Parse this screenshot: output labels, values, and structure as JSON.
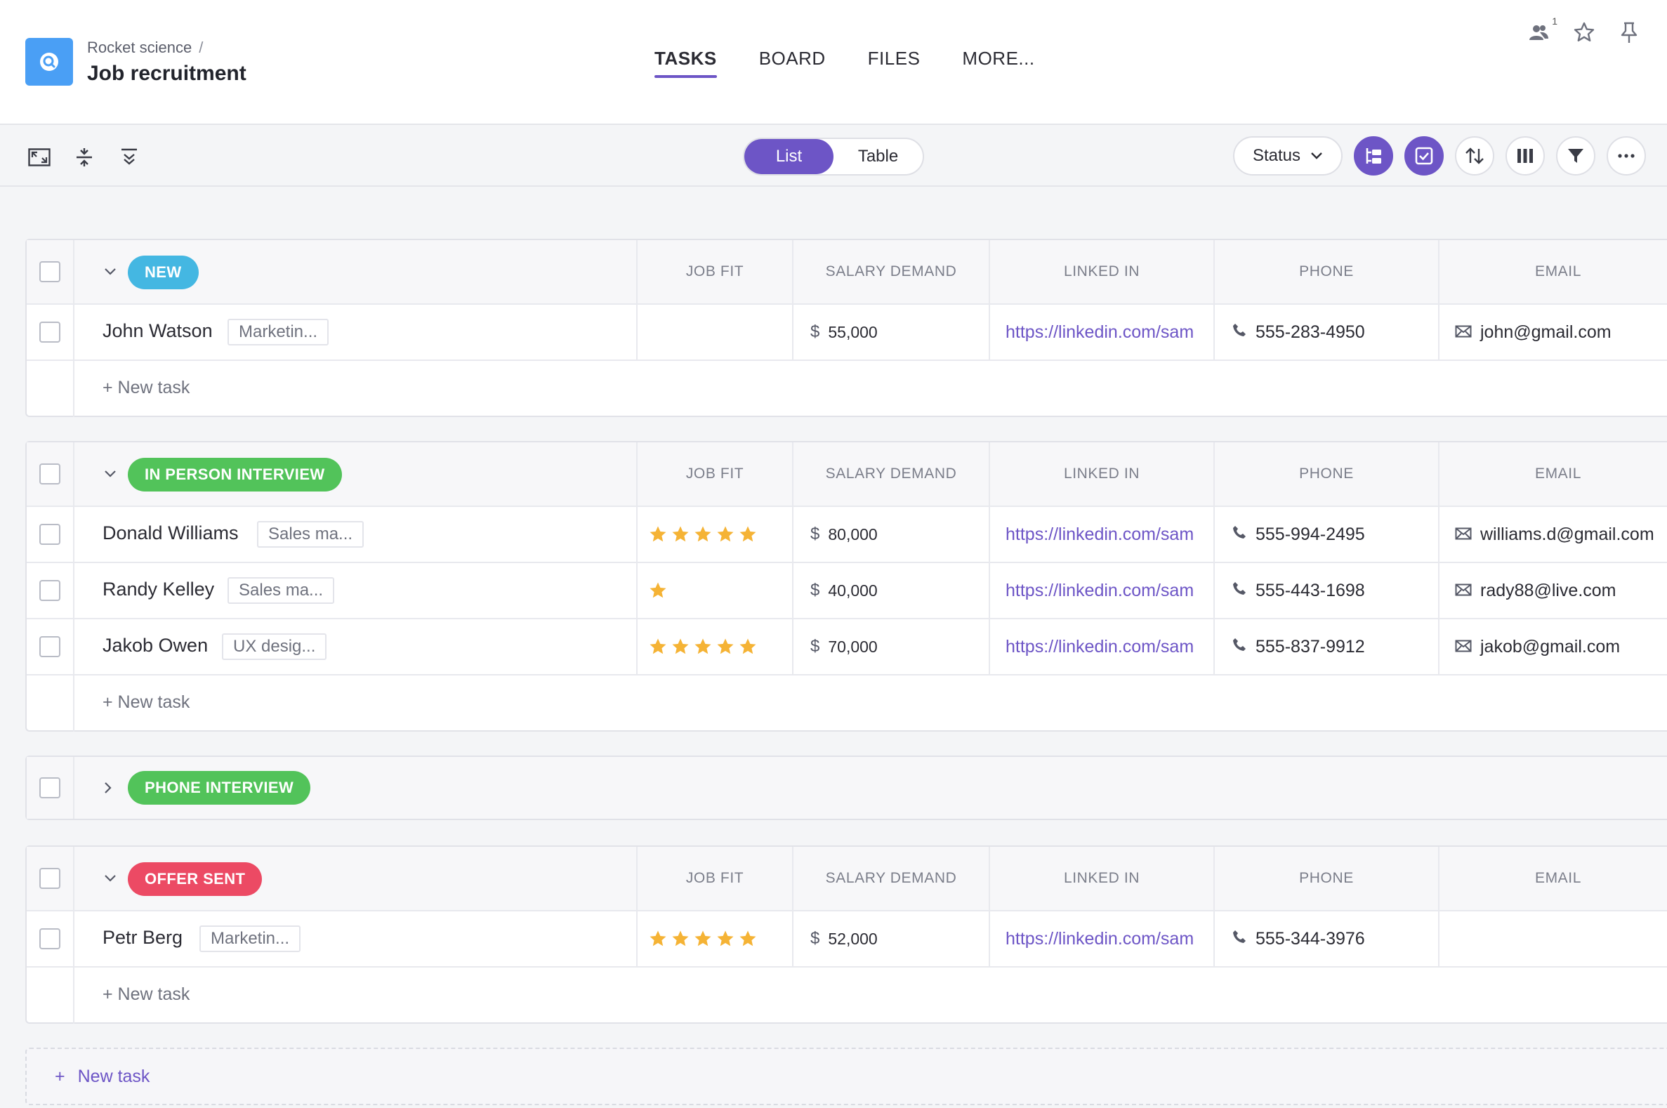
{
  "header": {
    "breadcrumb": "Rocket science",
    "breadcrumb_sep": "/",
    "title": "Job recruitment",
    "tabs": [
      {
        "label": "TASKS",
        "active": true
      },
      {
        "label": "BOARD",
        "active": false
      },
      {
        "label": "FILES",
        "active": false
      },
      {
        "label": "MORE..."
      }
    ],
    "members_count": "1",
    "icons": [
      "members-icon",
      "star-icon",
      "pin-icon"
    ]
  },
  "toolbar": {
    "view_options": [
      {
        "label": "List",
        "active": true
      },
      {
        "label": "Table",
        "active": false
      }
    ],
    "status_label": "Status",
    "accent": "#6d55c6"
  },
  "columns": [
    "JOB FIT",
    "SALARY DEMAND",
    "LINKED IN",
    "PHONE",
    "EMAIL"
  ],
  "add_task_label": "+ New task",
  "groups": [
    {
      "name": "NEW",
      "color": "#44b7e2",
      "expanded": true,
      "tasks": [
        {
          "name": "John Watson",
          "tag": "Marketin...",
          "stars": 0,
          "currency": "$",
          "salary": "55,000",
          "linkedin": "https://linkedin.com/sam",
          "phone": "555-283-4950",
          "email": "john@gmail.com"
        }
      ]
    },
    {
      "name": "IN PERSON INTERVIEW",
      "color": "#52c35a",
      "expanded": true,
      "tasks": [
        {
          "name": "Donald Williams",
          "tag": "Sales ma...",
          "stars": 5,
          "currency": "$",
          "salary": "80,000",
          "linkedin": "https://linkedin.com/sam",
          "phone": "555-994-2495",
          "email": "williams.d@gmail.com"
        },
        {
          "name": "Randy Kelley",
          "tag": "Sales ma...",
          "stars": 1,
          "currency": "$",
          "salary": "40,000",
          "linkedin": "https://linkedin.com/sam",
          "phone": "555-443-1698",
          "email": "rady88@live.com"
        },
        {
          "name": "Jakob Owen",
          "tag": "UX desig...",
          "stars": 5,
          "currency": "$",
          "salary": "70,000",
          "linkedin": "https://linkedin.com/sam",
          "phone": "555-837-9912",
          "email": "jakob@gmail.com"
        }
      ]
    },
    {
      "name": "PHONE INTERVIEW",
      "color": "#52c35a",
      "expanded": false,
      "tasks": []
    },
    {
      "name": "OFFER SENT",
      "color": "#ec4a64",
      "expanded": true,
      "tasks": [
        {
          "name": "Petr Berg",
          "tag": "Marketin...",
          "stars": 5,
          "currency": "$",
          "salary": "52,000",
          "linkedin": "https://linkedin.com/sam",
          "phone": "555-344-3976",
          "email": ""
        }
      ]
    }
  ],
  "bottom_add_label": "New task",
  "bottom_add_plus": "+"
}
